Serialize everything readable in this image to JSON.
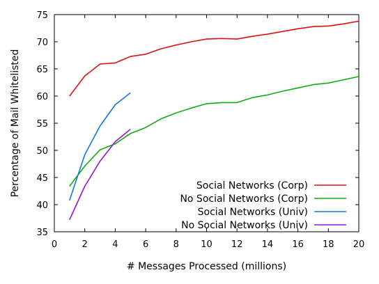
{
  "chart_data": {
    "type": "line",
    "title": "",
    "xlabel": "# Messages Processed (millions)",
    "ylabel": "Percentage of Mail Whitelisted",
    "xlim": [
      0,
      20
    ],
    "ylim": [
      35,
      75
    ],
    "xticks": [
      "0",
      "2",
      "4",
      "6",
      "8",
      "10",
      "12",
      "14",
      "16",
      "18",
      "20"
    ],
    "yticks": [
      "35",
      "40",
      "45",
      "50",
      "55",
      "60",
      "65",
      "70",
      "75"
    ],
    "grid": false,
    "legend_position": "bottom-right",
    "series": [
      {
        "name": "Social Networks (Corp)",
        "color": "#dd1111",
        "x": [
          1,
          2,
          3,
          4,
          5,
          6,
          7,
          8,
          9,
          10,
          11,
          12,
          13,
          14,
          15,
          16,
          17,
          18,
          19,
          20
        ],
        "y": [
          60.0,
          63.7,
          65.9,
          66.1,
          67.3,
          67.7,
          68.7,
          69.4,
          70.0,
          70.5,
          70.6,
          70.5,
          71.0,
          71.4,
          71.9,
          72.4,
          72.8,
          72.9,
          73.3,
          73.8
        ]
      },
      {
        "name": "No Social Networks (Corp)",
        "color": "#11aa11",
        "x": [
          1,
          2,
          3,
          4,
          5,
          6,
          7,
          8,
          9,
          10,
          11,
          12,
          13,
          14,
          15,
          16,
          17,
          18,
          19,
          20
        ],
        "y": [
          43.4,
          47.1,
          50.1,
          51.2,
          53.1,
          54.2,
          55.8,
          56.9,
          57.8,
          58.6,
          58.8,
          58.8,
          59.7,
          60.2,
          60.9,
          61.5,
          62.1,
          62.4,
          63.0,
          63.6
        ]
      },
      {
        "name": "Social Networks (Univ)",
        "color": "#1177dd",
        "x": [
          1,
          2,
          3,
          4,
          5
        ],
        "y": [
          40.8,
          49.2,
          54.5,
          58.4,
          60.6
        ]
      },
      {
        "name": "No Social Networks (Univ)",
        "color": "#9911dd",
        "x": [
          1,
          2,
          3,
          4,
          5
        ],
        "y": [
          37.2,
          43.4,
          48.0,
          51.6,
          53.9
        ]
      }
    ]
  }
}
